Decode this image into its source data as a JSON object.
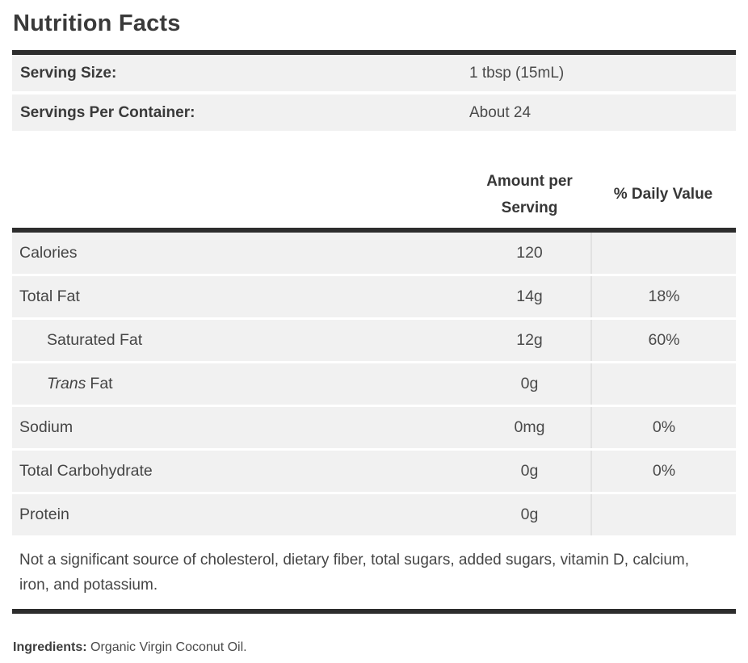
{
  "colors": {
    "row_bg": "#f1f1f1",
    "divider": "#2d2d2d",
    "separator": "#e1e1e1",
    "text": "#424242"
  },
  "title": "Nutrition Facts",
  "serving_info": [
    {
      "label": "Serving Size:",
      "value": "1 tbsp (15mL)"
    },
    {
      "label": "Servings Per Container:",
      "value": "About 24"
    }
  ],
  "table": {
    "header": {
      "amount": "Amount per Serving",
      "daily_value": "% Daily Value"
    },
    "rows": [
      {
        "label": "Calories",
        "amount": "120",
        "daily_value": ""
      },
      {
        "label": "Total Fat",
        "amount": "14g",
        "daily_value": "18%"
      },
      {
        "label": "Saturated Fat",
        "amount": "12g",
        "daily_value": "60%",
        "indent": true
      },
      {
        "label_italic": "Trans",
        "label": "Fat",
        "amount": "0g",
        "daily_value": "",
        "indent": true
      },
      {
        "label": "Sodium",
        "amount": "0mg",
        "daily_value": "0%"
      },
      {
        "label": "Total Carbohydrate",
        "amount": "0g",
        "daily_value": "0%"
      },
      {
        "label": "Protein",
        "amount": "0g",
        "daily_value": ""
      }
    ],
    "footnote": "Not a significant source of cholesterol, dietary fiber, total sugars, added sugars, vitamin D, calcium, iron, and potassium."
  },
  "ingredients": {
    "label": "Ingredients:",
    "value": "Organic Virgin Coconut Oil."
  }
}
